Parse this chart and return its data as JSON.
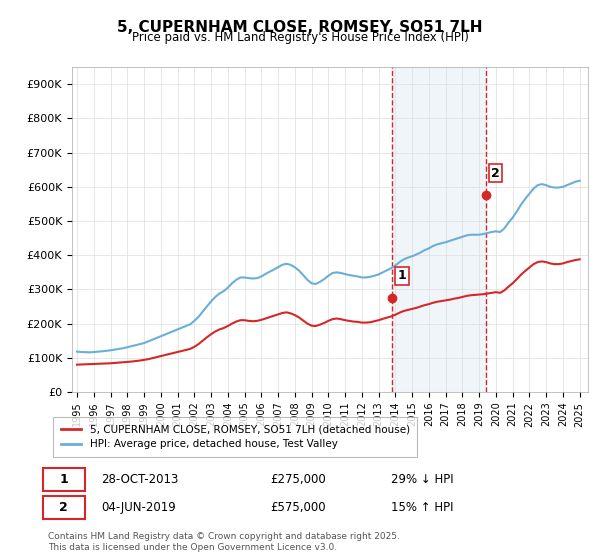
{
  "title": "5, CUPERNHAM CLOSE, ROMSEY, SO51 7LH",
  "subtitle": "Price paid vs. HM Land Registry's House Price Index (HPI)",
  "ylabel_ticks": [
    "£0",
    "£100K",
    "£200K",
    "£300K",
    "£400K",
    "£500K",
    "£600K",
    "£700K",
    "£800K",
    "£900K"
  ],
  "ytick_vals": [
    0,
    100000,
    200000,
    300000,
    400000,
    500000,
    600000,
    700000,
    800000,
    900000
  ],
  "ylim": [
    0,
    950000
  ],
  "xlim_start": 1995.0,
  "xlim_end": 2025.5,
  "hpi_color": "#6baed6",
  "price_color": "#d62728",
  "shaded_color": "#c6dbef",
  "vline_color": "#d62728",
  "marker1_date": 2013.83,
  "marker1_price": 275000,
  "marker1_label": "1",
  "marker2_date": 2019.42,
  "marker2_price": 575000,
  "marker2_label": "2",
  "legend_line1": "5, CUPERNHAM CLOSE, ROMSEY, SO51 7LH (detached house)",
  "legend_line2": "HPI: Average price, detached house, Test Valley",
  "ann1_date_str": "28-OCT-2013",
  "ann1_price_str": "£275,000",
  "ann1_hpi_str": "29% ↓ HPI",
  "ann2_date_str": "04-JUN-2019",
  "ann2_price_str": "£575,000",
  "ann2_hpi_str": "15% ↑ HPI",
  "footer": "Contains HM Land Registry data © Crown copyright and database right 2025.\nThis data is licensed under the Open Government Licence v3.0.",
  "hpi_data": [
    [
      1995.0,
      118000
    ],
    [
      1995.25,
      117000
    ],
    [
      1995.5,
      116500
    ],
    [
      1995.75,
      116000
    ],
    [
      1996.0,
      117000
    ],
    [
      1996.25,
      118000
    ],
    [
      1996.5,
      119000
    ],
    [
      1996.75,
      120500
    ],
    [
      1997.0,
      122000
    ],
    [
      1997.25,
      124000
    ],
    [
      1997.5,
      126000
    ],
    [
      1997.75,
      128000
    ],
    [
      1998.0,
      131000
    ],
    [
      1998.25,
      134000
    ],
    [
      1998.5,
      137000
    ],
    [
      1998.75,
      140000
    ],
    [
      1999.0,
      143000
    ],
    [
      1999.25,
      148000
    ],
    [
      1999.5,
      153000
    ],
    [
      1999.75,
      158000
    ],
    [
      2000.0,
      163000
    ],
    [
      2000.25,
      168000
    ],
    [
      2000.5,
      173000
    ],
    [
      2000.75,
      178000
    ],
    [
      2001.0,
      183000
    ],
    [
      2001.25,
      188000
    ],
    [
      2001.5,
      193000
    ],
    [
      2001.75,
      198000
    ],
    [
      2002.0,
      208000
    ],
    [
      2002.25,
      220000
    ],
    [
      2002.5,
      235000
    ],
    [
      2002.75,
      250000
    ],
    [
      2003.0,
      265000
    ],
    [
      2003.25,
      278000
    ],
    [
      2003.5,
      288000
    ],
    [
      2003.75,
      295000
    ],
    [
      2004.0,
      305000
    ],
    [
      2004.25,
      318000
    ],
    [
      2004.5,
      328000
    ],
    [
      2004.75,
      335000
    ],
    [
      2005.0,
      335000
    ],
    [
      2005.25,
      333000
    ],
    [
      2005.5,
      332000
    ],
    [
      2005.75,
      333000
    ],
    [
      2006.0,
      338000
    ],
    [
      2006.25,
      345000
    ],
    [
      2006.5,
      352000
    ],
    [
      2006.75,
      358000
    ],
    [
      2007.0,
      365000
    ],
    [
      2007.25,
      372000
    ],
    [
      2007.5,
      375000
    ],
    [
      2007.75,
      372000
    ],
    [
      2008.0,
      365000
    ],
    [
      2008.25,
      355000
    ],
    [
      2008.5,
      342000
    ],
    [
      2008.75,
      328000
    ],
    [
      2009.0,
      318000
    ],
    [
      2009.25,
      316000
    ],
    [
      2009.5,
      322000
    ],
    [
      2009.75,
      330000
    ],
    [
      2010.0,
      340000
    ],
    [
      2010.25,
      348000
    ],
    [
      2010.5,
      350000
    ],
    [
      2010.75,
      348000
    ],
    [
      2011.0,
      345000
    ],
    [
      2011.25,
      342000
    ],
    [
      2011.5,
      340000
    ],
    [
      2011.75,
      338000
    ],
    [
      2012.0,
      335000
    ],
    [
      2012.25,
      335000
    ],
    [
      2012.5,
      337000
    ],
    [
      2012.75,
      340000
    ],
    [
      2013.0,
      344000
    ],
    [
      2013.25,
      350000
    ],
    [
      2013.5,
      356000
    ],
    [
      2013.75,
      362000
    ],
    [
      2014.0,
      370000
    ],
    [
      2014.25,
      380000
    ],
    [
      2014.5,
      388000
    ],
    [
      2014.75,
      393000
    ],
    [
      2015.0,
      397000
    ],
    [
      2015.25,
      402000
    ],
    [
      2015.5,
      408000
    ],
    [
      2015.75,
      415000
    ],
    [
      2016.0,
      420000
    ],
    [
      2016.25,
      427000
    ],
    [
      2016.5,
      432000
    ],
    [
      2016.75,
      435000
    ],
    [
      2017.0,
      438000
    ],
    [
      2017.25,
      442000
    ],
    [
      2017.5,
      446000
    ],
    [
      2017.75,
      450000
    ],
    [
      2018.0,
      454000
    ],
    [
      2018.25,
      458000
    ],
    [
      2018.5,
      460000
    ],
    [
      2018.75,
      460000
    ],
    [
      2019.0,
      460000
    ],
    [
      2019.25,
      462000
    ],
    [
      2019.5,
      465000
    ],
    [
      2019.75,
      468000
    ],
    [
      2020.0,
      470000
    ],
    [
      2020.25,
      468000
    ],
    [
      2020.5,
      478000
    ],
    [
      2020.75,
      495000
    ],
    [
      2021.0,
      510000
    ],
    [
      2021.25,
      528000
    ],
    [
      2021.5,
      548000
    ],
    [
      2021.75,
      565000
    ],
    [
      2022.0,
      580000
    ],
    [
      2022.25,
      595000
    ],
    [
      2022.5,
      605000
    ],
    [
      2022.75,
      608000
    ],
    [
      2023.0,
      605000
    ],
    [
      2023.25,
      600000
    ],
    [
      2023.5,
      598000
    ],
    [
      2023.75,
      598000
    ],
    [
      2024.0,
      600000
    ],
    [
      2024.25,
      605000
    ],
    [
      2024.5,
      610000
    ],
    [
      2024.75,
      615000
    ],
    [
      2025.0,
      618000
    ]
  ],
  "price_data": [
    [
      1995.0,
      80000
    ],
    [
      1995.25,
      80500
    ],
    [
      1995.5,
      81000
    ],
    [
      1995.75,
      81500
    ],
    [
      1996.0,
      82000
    ],
    [
      1996.25,
      82500
    ],
    [
      1996.5,
      83000
    ],
    [
      1996.75,
      83500
    ],
    [
      1997.0,
      84000
    ],
    [
      1997.25,
      85000
    ],
    [
      1997.5,
      86000
    ],
    [
      1997.75,
      87000
    ],
    [
      1998.0,
      88000
    ],
    [
      1998.25,
      89000
    ],
    [
      1998.5,
      90500
    ],
    [
      1998.75,
      92000
    ],
    [
      1999.0,
      94000
    ],
    [
      1999.25,
      96000
    ],
    [
      1999.5,
      99000
    ],
    [
      1999.75,
      102000
    ],
    [
      2000.0,
      105000
    ],
    [
      2000.25,
      108000
    ],
    [
      2000.5,
      111000
    ],
    [
      2000.75,
      114000
    ],
    [
      2001.0,
      117000
    ],
    [
      2001.25,
      120000
    ],
    [
      2001.5,
      123000
    ],
    [
      2001.75,
      126000
    ],
    [
      2002.0,
      132000
    ],
    [
      2002.25,
      140000
    ],
    [
      2002.5,
      150000
    ],
    [
      2002.75,
      160000
    ],
    [
      2003.0,
      169000
    ],
    [
      2003.25,
      177000
    ],
    [
      2003.5,
      183000
    ],
    [
      2003.75,
      187000
    ],
    [
      2004.0,
      193000
    ],
    [
      2004.25,
      200000
    ],
    [
      2004.5,
      206000
    ],
    [
      2004.75,
      210000
    ],
    [
      2005.0,
      210000
    ],
    [
      2005.25,
      208000
    ],
    [
      2005.5,
      207000
    ],
    [
      2005.75,
      208000
    ],
    [
      2006.0,
      211000
    ],
    [
      2006.25,
      215000
    ],
    [
      2006.5,
      219000
    ],
    [
      2006.75,
      223000
    ],
    [
      2007.0,
      227000
    ],
    [
      2007.25,
      231000
    ],
    [
      2007.5,
      233000
    ],
    [
      2007.75,
      230000
    ],
    [
      2008.0,
      225000
    ],
    [
      2008.25,
      218000
    ],
    [
      2008.5,
      209000
    ],
    [
      2008.75,
      200000
    ],
    [
      2009.0,
      194000
    ],
    [
      2009.25,
      193000
    ],
    [
      2009.5,
      197000
    ],
    [
      2009.75,
      202000
    ],
    [
      2010.0,
      208000
    ],
    [
      2010.25,
      213000
    ],
    [
      2010.5,
      215000
    ],
    [
      2010.75,
      213000
    ],
    [
      2011.0,
      210000
    ],
    [
      2011.25,
      208000
    ],
    [
      2011.5,
      206000
    ],
    [
      2011.75,
      205000
    ],
    [
      2012.0,
      203000
    ],
    [
      2012.25,
      203000
    ],
    [
      2012.5,
      204000
    ],
    [
      2012.75,
      207000
    ],
    [
      2013.0,
      210000
    ],
    [
      2013.25,
      214000
    ],
    [
      2013.5,
      217500
    ],
    [
      2013.75,
      221000
    ],
    [
      2014.0,
      226000
    ],
    [
      2014.25,
      232000
    ],
    [
      2014.5,
      237000
    ],
    [
      2014.75,
      240000
    ],
    [
      2015.0,
      243000
    ],
    [
      2015.25,
      246000
    ],
    [
      2015.5,
      250000
    ],
    [
      2015.75,
      254000
    ],
    [
      2016.0,
      257000
    ],
    [
      2016.25,
      261000
    ],
    [
      2016.5,
      264000
    ],
    [
      2016.75,
      266000
    ],
    [
      2017.0,
      268000
    ],
    [
      2017.25,
      270000
    ],
    [
      2017.5,
      273000
    ],
    [
      2017.75,
      275000
    ],
    [
      2018.0,
      278000
    ],
    [
      2018.25,
      281000
    ],
    [
      2018.5,
      283000
    ],
    [
      2018.75,
      284000
    ],
    [
      2019.0,
      285000
    ],
    [
      2019.25,
      286000
    ],
    [
      2019.5,
      288000
    ],
    [
      2019.75,
      290000
    ],
    [
      2020.0,
      292000
    ],
    [
      2020.25,
      290000
    ],
    [
      2020.5,
      297000
    ],
    [
      2020.75,
      308000
    ],
    [
      2021.0,
      318000
    ],
    [
      2021.25,
      330000
    ],
    [
      2021.5,
      343000
    ],
    [
      2021.75,
      354000
    ],
    [
      2022.0,
      364000
    ],
    [
      2022.25,
      374000
    ],
    [
      2022.5,
      380000
    ],
    [
      2022.75,
      382000
    ],
    [
      2023.0,
      380000
    ],
    [
      2023.25,
      376000
    ],
    [
      2023.5,
      374000
    ],
    [
      2023.75,
      374000
    ],
    [
      2024.0,
      376000
    ],
    [
      2024.25,
      380000
    ],
    [
      2024.5,
      383000
    ],
    [
      2024.75,
      386000
    ],
    [
      2025.0,
      388000
    ]
  ]
}
